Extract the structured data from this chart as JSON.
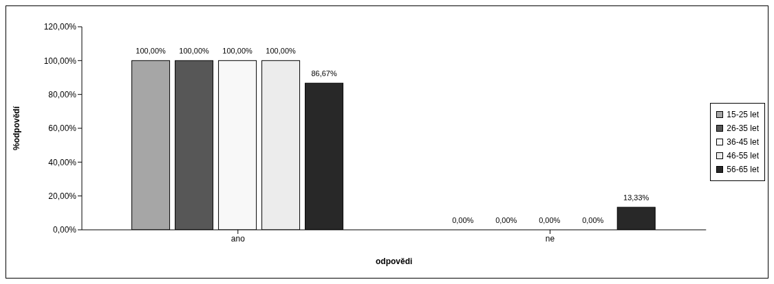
{
  "chart_data": {
    "type": "bar",
    "xlabel": "odpovědi",
    "ylabel": "%odpovědí",
    "categories": [
      "ano",
      "ne"
    ],
    "series": [
      {
        "name": "15-25 let",
        "color": "#a6a6a6",
        "values": [
          100,
          0
        ]
      },
      {
        "name": "26-35 let",
        "color": "#575757",
        "values": [
          100,
          0
        ]
      },
      {
        "name": "36-45 let",
        "color": "#f8f8f8",
        "values": [
          100,
          0
        ]
      },
      {
        "name": "46-55 let",
        "color": "#ececec",
        "values": [
          100,
          0
        ]
      },
      {
        "name": "56-65 let",
        "color": "#282828",
        "values": [
          86.67,
          13.33
        ]
      }
    ],
    "ylim": [
      0,
      120
    ],
    "yticks": [
      {
        "value": 0,
        "label": "0,00%"
      },
      {
        "value": 20,
        "label": "20,00%"
      },
      {
        "value": 40,
        "label": "40,00%"
      },
      {
        "value": 60,
        "label": "60,00%"
      },
      {
        "value": 80,
        "label": "80,00%"
      },
      {
        "value": 100,
        "label": "100,00%"
      },
      {
        "value": 120,
        "label": "120,00%"
      }
    ],
    "value_labels": [
      [
        "100,00%",
        "0,00%"
      ],
      [
        "100,00%",
        "0,00%"
      ],
      [
        "100,00%",
        "0,00%"
      ],
      [
        "100,00%",
        "0,00%"
      ],
      [
        "86,67%",
        "13,33%"
      ]
    ],
    "grid": false,
    "legend": "right"
  }
}
